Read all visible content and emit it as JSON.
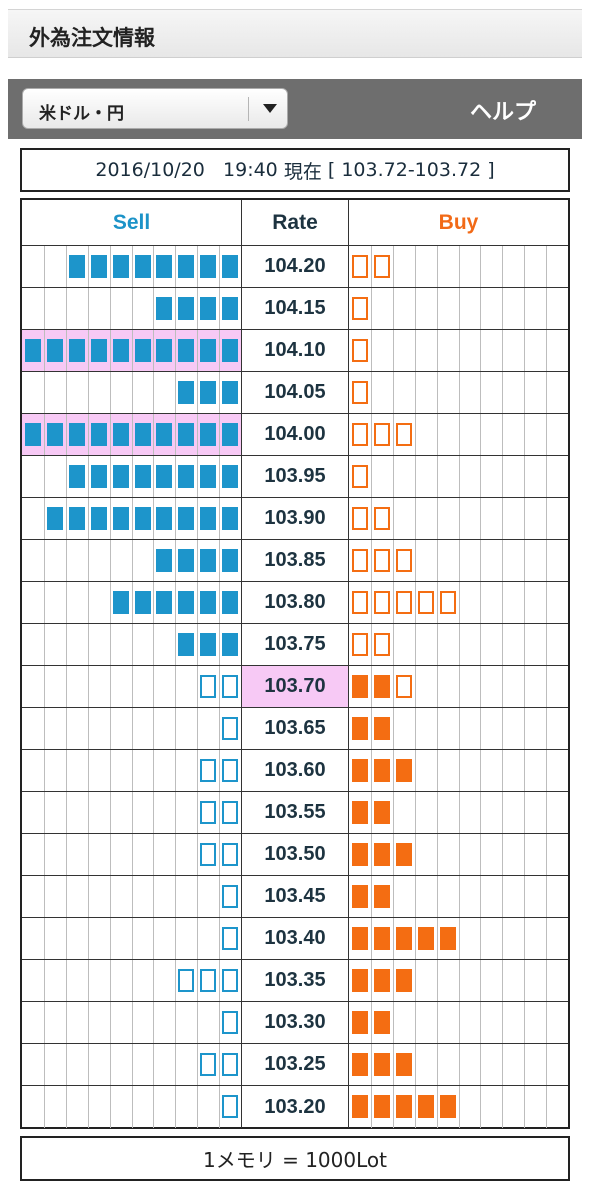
{
  "header": {
    "title": "外為注文情報"
  },
  "toolbar": {
    "currency_selected": "米ドル・円",
    "help_label": "ヘルプ"
  },
  "info": {
    "date": "2016/10/20",
    "time": "19:40",
    "status": "現在",
    "range": "[ 103.72-103.72 ]"
  },
  "board": {
    "columns": {
      "sell": "Sell",
      "rate": "Rate",
      "buy": "Buy"
    },
    "grid_cells": 10,
    "current_rate": "103.70",
    "rows": [
      {
        "rate": "104.20",
        "sell": 8,
        "sell_style": "fill",
        "sell_highlight": false,
        "buy": 2,
        "buy_style": "empty"
      },
      {
        "rate": "104.15",
        "sell": 4,
        "sell_style": "fill",
        "sell_highlight": false,
        "buy": 1,
        "buy_style": "empty"
      },
      {
        "rate": "104.10",
        "sell": 10,
        "sell_style": "fill",
        "sell_highlight": true,
        "buy": 1,
        "buy_style": "empty"
      },
      {
        "rate": "104.05",
        "sell": 3,
        "sell_style": "fill",
        "sell_highlight": false,
        "buy": 1,
        "buy_style": "empty"
      },
      {
        "rate": "104.00",
        "sell": 10,
        "sell_style": "fill",
        "sell_highlight": true,
        "buy": 3,
        "buy_style": "empty"
      },
      {
        "rate": "103.95",
        "sell": 8,
        "sell_style": "fill",
        "sell_highlight": false,
        "buy": 1,
        "buy_style": "empty"
      },
      {
        "rate": "103.90",
        "sell": 9,
        "sell_style": "fill",
        "sell_highlight": false,
        "buy": 2,
        "buy_style": "empty"
      },
      {
        "rate": "103.85",
        "sell": 4,
        "sell_style": "fill",
        "sell_highlight": false,
        "buy": 3,
        "buy_style": "empty"
      },
      {
        "rate": "103.80",
        "sell": 6,
        "sell_style": "fill",
        "sell_highlight": false,
        "buy": 5,
        "buy_style": "empty"
      },
      {
        "rate": "103.75",
        "sell": 3,
        "sell_style": "fill",
        "sell_highlight": false,
        "buy": 2,
        "buy_style": "empty"
      },
      {
        "rate": "103.70",
        "sell": 2,
        "sell_style": "empty",
        "sell_highlight": false,
        "buy": 3,
        "buy_style": "mixed",
        "buy_filled": 2
      },
      {
        "rate": "103.65",
        "sell": 1,
        "sell_style": "empty",
        "sell_highlight": false,
        "buy": 2,
        "buy_style": "fill"
      },
      {
        "rate": "103.60",
        "sell": 2,
        "sell_style": "empty",
        "sell_highlight": false,
        "buy": 3,
        "buy_style": "fill"
      },
      {
        "rate": "103.55",
        "sell": 2,
        "sell_style": "empty",
        "sell_highlight": false,
        "buy": 2,
        "buy_style": "fill"
      },
      {
        "rate": "103.50",
        "sell": 2,
        "sell_style": "empty",
        "sell_highlight": false,
        "buy": 3,
        "buy_style": "fill"
      },
      {
        "rate": "103.45",
        "sell": 1,
        "sell_style": "empty",
        "sell_highlight": false,
        "buy": 2,
        "buy_style": "fill"
      },
      {
        "rate": "103.40",
        "sell": 1,
        "sell_style": "empty",
        "sell_highlight": false,
        "buy": 5,
        "buy_style": "fill"
      },
      {
        "rate": "103.35",
        "sell": 3,
        "sell_style": "empty",
        "sell_highlight": false,
        "buy": 3,
        "buy_style": "fill"
      },
      {
        "rate": "103.30",
        "sell": 1,
        "sell_style": "empty",
        "sell_highlight": false,
        "buy": 2,
        "buy_style": "fill"
      },
      {
        "rate": "103.25",
        "sell": 2,
        "sell_style": "empty",
        "sell_highlight": false,
        "buy": 3,
        "buy_style": "fill"
      },
      {
        "rate": "103.20",
        "sell": 1,
        "sell_style": "empty",
        "sell_highlight": false,
        "buy": 5,
        "buy_style": "fill"
      }
    ]
  },
  "footer": {
    "note": "1メモリ = 1000Lot"
  },
  "colors": {
    "sell": "#1d95cb",
    "buy": "#f46d12",
    "highlight": "#f7c9f5",
    "toolbar": "#6e6e6e"
  }
}
